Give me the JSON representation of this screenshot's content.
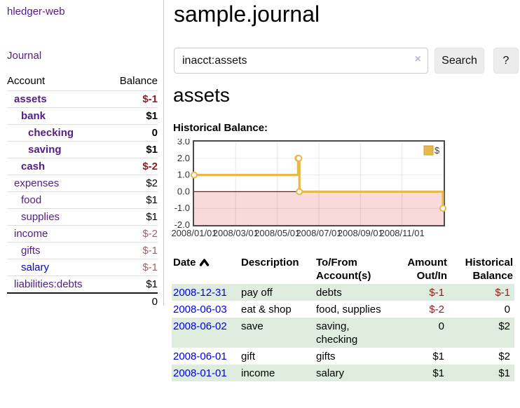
{
  "sidebar": {
    "app_title": "hledger-web",
    "journal_link": "Journal",
    "columns": {
      "account": "Account",
      "balance": "Balance"
    },
    "accounts": [
      {
        "name": "assets",
        "balance": "$-1"
      },
      {
        "name": "bank",
        "balance": "$1"
      },
      {
        "name": "checking",
        "balance": "0"
      },
      {
        "name": "saving",
        "balance": "$1"
      },
      {
        "name": "cash",
        "balance": "$-2"
      },
      {
        "name": "expenses",
        "balance": "$2"
      },
      {
        "name": "food",
        "balance": "$1"
      },
      {
        "name": "supplies",
        "balance": "$1"
      },
      {
        "name": "income",
        "balance": "$-2"
      },
      {
        "name": "gifts",
        "balance": "$-1"
      },
      {
        "name": "salary",
        "balance": "$-1"
      },
      {
        "name": "liabilities:debts",
        "balance": "$1"
      }
    ],
    "total": "0"
  },
  "header": {
    "title": "sample.journal"
  },
  "search": {
    "query": "inacct:assets",
    "clear_icon": "×",
    "button": "Search",
    "help_button": "?"
  },
  "main": {
    "section_title": "assets",
    "chart_label": "Historical Balance:"
  },
  "chart_data": {
    "type": "line",
    "step": true,
    "series": [
      {
        "name": "$",
        "points": [
          [
            "2008-01-01",
            1
          ],
          [
            "2008-06-01",
            2
          ],
          [
            "2008-06-02",
            2
          ],
          [
            "2008-06-03",
            0
          ],
          [
            "2008-12-31",
            -1
          ]
        ]
      }
    ],
    "ylim": [
      -2,
      3
    ],
    "yticks": [
      3,
      2,
      1,
      0,
      -1,
      -2
    ],
    "xlim": [
      "2008-01-01",
      "2009-01-01"
    ],
    "xticks": [
      "2008/01/01",
      "2008/03/01",
      "2008/05/01",
      "2008/07/01",
      "2008/09/01",
      "2008/11/01"
    ],
    "legend": "$",
    "legend_position": "top-right",
    "grid": true,
    "negative_region_shaded": true,
    "colors": {
      "series": "#e7b84a",
      "negative_fill": "#f8dada",
      "zero_line": "#7d1616",
      "border": "#4a4a4a"
    }
  },
  "register": {
    "columns": [
      {
        "label": "Date",
        "sub": ""
      },
      {
        "label": "Description",
        "sub": ""
      },
      {
        "label": "To/From",
        "sub": "Account(s)"
      },
      {
        "label": "Amount",
        "sub": "Out/In"
      },
      {
        "label": "Historical",
        "sub": "Balance"
      }
    ],
    "rows": [
      {
        "date": "2008-12-31",
        "description": "pay off",
        "accounts": "debts",
        "amount": "$-1",
        "balance": "$-1"
      },
      {
        "date": "2008-06-03",
        "description": "eat & shop",
        "accounts": "food, supplies",
        "amount": "$-2",
        "balance": "0"
      },
      {
        "date": "2008-06-02",
        "description": "save",
        "accounts": "saving, checking",
        "amount": "0",
        "balance": "$2"
      },
      {
        "date": "2008-06-01",
        "description": "gift",
        "accounts": "gifts",
        "amount": "$1",
        "balance": "$2"
      },
      {
        "date": "2008-01-01",
        "description": "income",
        "accounts": "salary",
        "amount": "$1",
        "balance": "$1"
      }
    ]
  }
}
